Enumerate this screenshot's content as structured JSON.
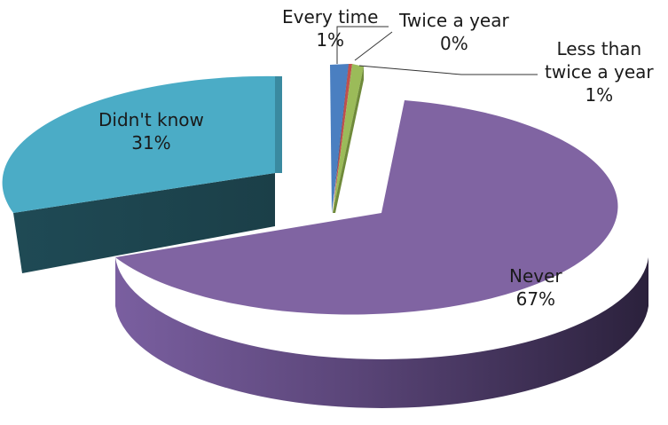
{
  "chart_data": {
    "type": "pie",
    "style": "3d-exploded",
    "title": "",
    "slices": [
      {
        "label": "Every time",
        "value": 1,
        "value_label": "1%",
        "color": "#4a7fc1"
      },
      {
        "label": "Twice a year",
        "value": 0.3,
        "value_label": "0%",
        "color": "#c0504d"
      },
      {
        "label": "Less than twice a year",
        "value": 1,
        "value_label": "1%",
        "color": "#9bbb59"
      },
      {
        "label": "Never",
        "value": 67,
        "value_label": "67%",
        "color": "#8064a2"
      },
      {
        "label": "Didn't know",
        "value": 31,
        "value_label": "31%",
        "color": "#4bacc6"
      }
    ],
    "legend": "none"
  },
  "labels": {
    "every_time_name": "Every time",
    "every_time_pct": "1%",
    "twice_name": "Twice a year",
    "twice_pct": "0%",
    "less_name_1": "Less than",
    "less_name_2": "twice a year",
    "less_pct": "1%",
    "never_name": "Never",
    "never_pct": "67%",
    "didnt_name": "Didn't know",
    "didnt_pct": "31%"
  }
}
